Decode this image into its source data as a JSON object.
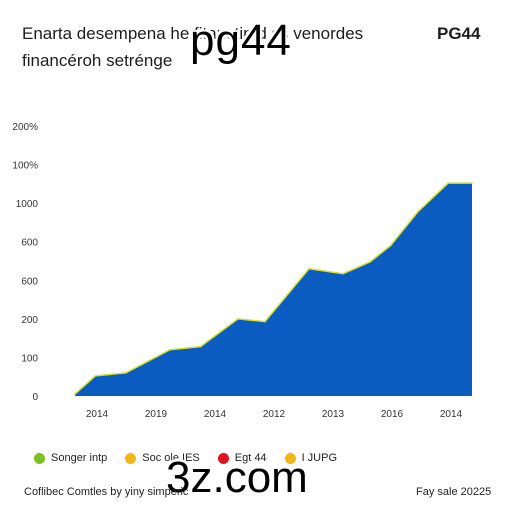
{
  "header": {
    "title_line1": "Enarta desempena he fitanctin d ss venordes",
    "title_line2": "financéroh setrénge",
    "brand": "PG44"
  },
  "watermarks": {
    "top": "pg44",
    "bottom": "3z.com"
  },
  "chart_data": {
    "type": "area",
    "title": "",
    "xlabel": "",
    "ylabel": "",
    "x_tick_labels": [
      "2014",
      "2019",
      "2014",
      "2012",
      "2013",
      "2016",
      "2014"
    ],
    "y_tick_labels": [
      "0",
      "100",
      "200",
      "600",
      "600",
      "1000",
      "100%",
      "200%"
    ],
    "ylim": [
      0,
      7
    ],
    "grid": false,
    "fill_color": "#0a5cc0",
    "edge_color": "#d8de2a",
    "series": [
      {
        "x": [
          0,
          0.3,
          0.75,
          1.4,
          1.85,
          2.4,
          2.8,
          3.45,
          3.95,
          4.35,
          4.65,
          5.05,
          5.5,
          5.85
        ],
        "values": [
          0.05,
          0.52,
          0.6,
          1.2,
          1.28,
          2.0,
          1.93,
          3.3,
          3.17,
          3.48,
          3.9,
          4.77,
          5.52,
          5.52
        ]
      }
    ]
  },
  "legend": [
    {
      "label": "Songer intp",
      "color": "#7ac21e"
    },
    {
      "label": "Soc ole IES",
      "color": "#f1b515"
    },
    {
      "label": "Egt 44",
      "color": "#e3131e"
    },
    {
      "label": "I JUPG",
      "color": "#f1b515"
    }
  ],
  "footer": {
    "left": "Coflibec Comtles by yiny simperic",
    "right": "Fay sale 20225"
  }
}
